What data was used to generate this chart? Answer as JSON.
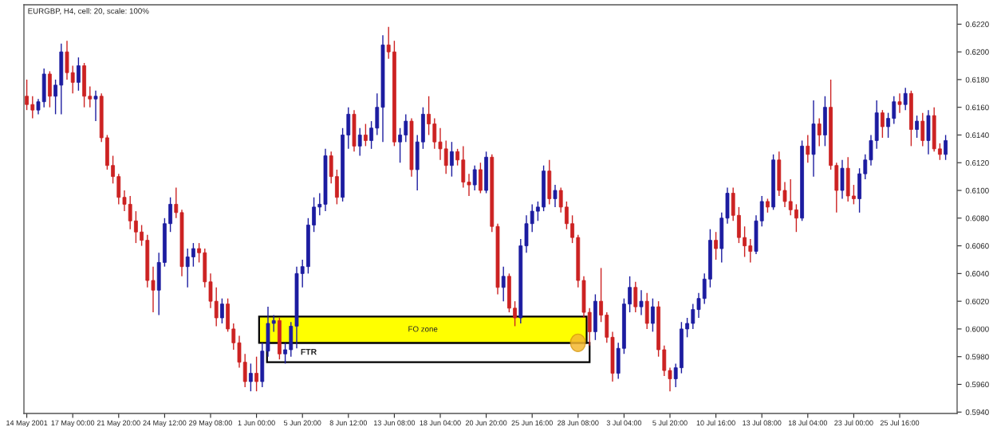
{
  "chart_data": {
    "type": "candlestick",
    "title": "EURGBP, H4, cell: 20, scale: 100%",
    "categories": [
      "14 May 2001",
      null,
      null,
      null,
      null,
      null,
      null,
      null,
      "17 May 00:00",
      null,
      null,
      null,
      null,
      null,
      null,
      null,
      "21 May 20:00",
      null,
      null,
      null,
      null,
      null,
      null,
      null,
      "24 May 12:00",
      null,
      null,
      null,
      null,
      null,
      null,
      null,
      "29 May 08:00",
      null,
      null,
      null,
      null,
      null,
      null,
      null,
      "1 Jun 00:00",
      null,
      null,
      null,
      null,
      null,
      null,
      null,
      "5 Jun 20:00",
      null,
      null,
      null,
      null,
      null,
      null,
      null,
      "8 Jun 12:00",
      null,
      null,
      null,
      null,
      null,
      null,
      null,
      "13 Jun 08:00",
      null,
      null,
      null,
      null,
      null,
      null,
      null,
      "18 Jun 04:00",
      null,
      null,
      null,
      null,
      null,
      null,
      null,
      "20 Jun 20:00",
      null,
      null,
      null,
      null,
      null,
      null,
      null,
      "25 Jun 16:00",
      null,
      null,
      null,
      null,
      null,
      null,
      null,
      "28 Jun 08:00",
      null,
      null,
      null,
      null,
      null,
      null,
      null,
      "3 Jul 04:00",
      null,
      null,
      null,
      null,
      null,
      null,
      null,
      "5 Jul 20:00",
      null,
      null,
      null,
      null,
      null,
      null,
      null,
      "10 Jul 16:00",
      null,
      null,
      null,
      null,
      null,
      null,
      null,
      "13 Jul 08:00",
      null,
      null,
      null,
      null,
      null,
      null,
      null,
      "18 Jul 04:00",
      null,
      null,
      null,
      null,
      null,
      null,
      null,
      "23 Jul 00:00",
      null,
      null,
      null,
      null,
      null,
      null,
      null,
      "25 Jul 16:00",
      null,
      null,
      null,
      null,
      null,
      null,
      null,
      null
    ],
    "ohlc": [
      [
        0.6168,
        0.618,
        0.6158,
        0.6162
      ],
      [
        0.6162,
        0.6168,
        0.6152,
        0.6158
      ],
      [
        0.6158,
        0.6166,
        0.6155,
        0.6164
      ],
      [
        0.6164,
        0.6188,
        0.616,
        0.6184
      ],
      [
        0.6184,
        0.6186,
        0.616,
        0.6168
      ],
      [
        0.6168,
        0.618,
        0.6155,
        0.6176
      ],
      [
        0.6176,
        0.6206,
        0.6155,
        0.62
      ],
      [
        0.62,
        0.6208,
        0.618,
        0.6185
      ],
      [
        0.6185,
        0.619,
        0.617,
        0.6178
      ],
      [
        0.6178,
        0.6196,
        0.6172,
        0.619
      ],
      [
        0.619,
        0.6192,
        0.616,
        0.6168
      ],
      [
        0.6168,
        0.6175,
        0.616,
        0.6166
      ],
      [
        0.6166,
        0.6172,
        0.615,
        0.6168
      ],
      [
        0.6168,
        0.617,
        0.6135,
        0.6138
      ],
      [
        0.6138,
        0.614,
        0.6115,
        0.6118
      ],
      [
        0.6118,
        0.6125,
        0.6105,
        0.611
      ],
      [
        0.611,
        0.6112,
        0.609,
        0.6095
      ],
      [
        0.6095,
        0.61,
        0.6085,
        0.609
      ],
      [
        0.609,
        0.6096,
        0.6072,
        0.6078
      ],
      [
        0.6078,
        0.6085,
        0.6062,
        0.607
      ],
      [
        0.607,
        0.6075,
        0.606,
        0.6064
      ],
      [
        0.6064,
        0.6068,
        0.603,
        0.6035
      ],
      [
        0.6035,
        0.6045,
        0.6012,
        0.6028
      ],
      [
        0.6028,
        0.6055,
        0.601,
        0.6048
      ],
      [
        0.6048,
        0.608,
        0.6045,
        0.6076
      ],
      [
        0.6076,
        0.6095,
        0.607,
        0.609
      ],
      [
        0.609,
        0.6102,
        0.608,
        0.6084
      ],
      [
        0.6084,
        0.6086,
        0.6038,
        0.6045
      ],
      [
        0.6045,
        0.6058,
        0.603,
        0.6052
      ],
      [
        0.6052,
        0.6062,
        0.6045,
        0.6058
      ],
      [
        0.6058,
        0.6062,
        0.6048,
        0.6055
      ],
      [
        0.6055,
        0.6058,
        0.603,
        0.6034
      ],
      [
        0.6034,
        0.604,
        0.6015,
        0.602
      ],
      [
        0.602,
        0.603,
        0.6002,
        0.6008
      ],
      [
        0.6008,
        0.6022,
        0.6004,
        0.6018
      ],
      [
        0.6018,
        0.6022,
        0.5998,
        0.6
      ],
      [
        0.6,
        0.6004,
        0.5985,
        0.599
      ],
      [
        0.599,
        0.5995,
        0.5972,
        0.5976
      ],
      [
        0.5976,
        0.5982,
        0.5958,
        0.5962
      ],
      [
        0.5962,
        0.5975,
        0.5955,
        0.5968
      ],
      [
        0.5968,
        0.598,
        0.5955,
        0.5962
      ],
      [
        0.5962,
        0.599,
        0.5958,
        0.5984
      ],
      [
        0.5984,
        0.6016,
        0.598,
        0.6004
      ],
      [
        0.6004,
        0.601,
        0.5998,
        0.6006
      ],
      [
        0.6006,
        0.6008,
        0.5978,
        0.5982
      ],
      [
        0.5982,
        0.599,
        0.5975,
        0.5985
      ],
      [
        0.5985,
        0.6005,
        0.598,
        0.6002
      ],
      [
        0.6002,
        0.6045,
        0.5986,
        0.604
      ],
      [
        0.604,
        0.605,
        0.603,
        0.6045
      ],
      [
        0.6045,
        0.608,
        0.604,
        0.6075
      ],
      [
        0.6075,
        0.6095,
        0.607,
        0.6088
      ],
      [
        0.6088,
        0.6098,
        0.6082,
        0.609
      ],
      [
        0.609,
        0.613,
        0.6085,
        0.6125
      ],
      [
        0.6125,
        0.6128,
        0.6105,
        0.611
      ],
      [
        0.611,
        0.6115,
        0.609,
        0.6095
      ],
      [
        0.6095,
        0.6145,
        0.6092,
        0.614
      ],
      [
        0.614,
        0.616,
        0.613,
        0.6155
      ],
      [
        0.6155,
        0.6158,
        0.6128,
        0.6132
      ],
      [
        0.6132,
        0.6145,
        0.6125,
        0.614
      ],
      [
        0.614,
        0.6148,
        0.6132,
        0.6136
      ],
      [
        0.6136,
        0.615,
        0.613,
        0.6145
      ],
      [
        0.6145,
        0.617,
        0.614,
        0.616
      ],
      [
        0.616,
        0.6212,
        0.6135,
        0.6205
      ],
      [
        0.6205,
        0.6218,
        0.6195,
        0.62
      ],
      [
        0.62,
        0.6208,
        0.6132,
        0.6135
      ],
      [
        0.6135,
        0.6145,
        0.612,
        0.614
      ],
      [
        0.614,
        0.6155,
        0.6135,
        0.615
      ],
      [
        0.615,
        0.6152,
        0.611,
        0.6115
      ],
      [
        0.6115,
        0.614,
        0.61,
        0.6135
      ],
      [
        0.6135,
        0.616,
        0.613,
        0.6155
      ],
      [
        0.6155,
        0.6168,
        0.614,
        0.6148
      ],
      [
        0.6148,
        0.6152,
        0.613,
        0.6135
      ],
      [
        0.6135,
        0.6145,
        0.6122,
        0.613
      ],
      [
        0.613,
        0.6136,
        0.6112,
        0.6118
      ],
      [
        0.6118,
        0.6135,
        0.611,
        0.6128
      ],
      [
        0.6128,
        0.613,
        0.6118,
        0.6122
      ],
      [
        0.6122,
        0.6132,
        0.6102,
        0.6106
      ],
      [
        0.6106,
        0.6112,
        0.6096,
        0.6104
      ],
      [
        0.6104,
        0.6118,
        0.61,
        0.6115
      ],
      [
        0.6115,
        0.612,
        0.6098,
        0.61
      ],
      [
        0.61,
        0.6128,
        0.6098,
        0.6124
      ],
      [
        0.6124,
        0.6126,
        0.607,
        0.6074
      ],
      [
        0.6074,
        0.6076,
        0.6025,
        0.603
      ],
      [
        0.603,
        0.6045,
        0.602,
        0.6038
      ],
      [
        0.6038,
        0.604,
        0.6012,
        0.6015
      ],
      [
        0.6015,
        0.602,
        0.6002,
        0.6008
      ],
      [
        0.6008,
        0.6065,
        0.6004,
        0.606
      ],
      [
        0.606,
        0.6082,
        0.6055,
        0.6076
      ],
      [
        0.6076,
        0.609,
        0.607,
        0.6085
      ],
      [
        0.6085,
        0.6092,
        0.6078,
        0.6088
      ],
      [
        0.6088,
        0.6118,
        0.6085,
        0.6114
      ],
      [
        0.6114,
        0.6122,
        0.609,
        0.6094
      ],
      [
        0.6094,
        0.6104,
        0.6088,
        0.61
      ],
      [
        0.61,
        0.6102,
        0.6084,
        0.6088
      ],
      [
        0.6088,
        0.6092,
        0.6072,
        0.6076
      ],
      [
        0.6076,
        0.6082,
        0.6062,
        0.6066
      ],
      [
        0.6066,
        0.6068,
        0.603,
        0.6035
      ],
      [
        0.6035,
        0.6038,
        0.6008,
        0.6012
      ],
      [
        0.6012,
        0.6015,
        0.5988,
        0.5998
      ],
      [
        0.5998,
        0.6025,
        0.5992,
        0.602
      ],
      [
        0.602,
        0.6044,
        0.6005,
        0.601
      ],
      [
        0.601,
        0.6012,
        0.599,
        0.5994
      ],
      [
        0.5994,
        0.5998,
        0.5962,
        0.5968
      ],
      [
        0.5968,
        0.599,
        0.5964,
        0.5986
      ],
      [
        0.5986,
        0.6022,
        0.5982,
        0.6018
      ],
      [
        0.6018,
        0.6038,
        0.6012,
        0.603
      ],
      [
        0.603,
        0.6034,
        0.6012,
        0.6016
      ],
      [
        0.6016,
        0.6028,
        0.601,
        0.602
      ],
      [
        0.602,
        0.6026,
        0.6,
        0.6004
      ],
      [
        0.6004,
        0.6022,
        0.5998,
        0.6016
      ],
      [
        0.6016,
        0.602,
        0.598,
        0.5985
      ],
      [
        0.5985,
        0.5988,
        0.5966,
        0.597
      ],
      [
        0.597,
        0.5972,
        0.5955,
        0.5964
      ],
      [
        0.5964,
        0.5975,
        0.5958,
        0.5972
      ],
      [
        0.5972,
        0.6005,
        0.5968,
        0.6
      ],
      [
        0.6,
        0.6008,
        0.5994,
        0.6004
      ],
      [
        0.6004,
        0.6018,
        0.6,
        0.6014
      ],
      [
        0.6014,
        0.6026,
        0.6008,
        0.6022
      ],
      [
        0.6022,
        0.604,
        0.6018,
        0.6036
      ],
      [
        0.6036,
        0.6072,
        0.603,
        0.6064
      ],
      [
        0.6064,
        0.607,
        0.605,
        0.6058
      ],
      [
        0.6058,
        0.6084,
        0.6048,
        0.608
      ],
      [
        0.608,
        0.6102,
        0.6076,
        0.6098
      ],
      [
        0.6098,
        0.6102,
        0.6078,
        0.6082
      ],
      [
        0.6082,
        0.6088,
        0.6062,
        0.6066
      ],
      [
        0.6066,
        0.6074,
        0.6052,
        0.606
      ],
      [
        0.606,
        0.6065,
        0.6048,
        0.6056
      ],
      [
        0.6056,
        0.6082,
        0.6054,
        0.6078
      ],
      [
        0.6078,
        0.6096,
        0.6074,
        0.6092
      ],
      [
        0.6092,
        0.6094,
        0.6084,
        0.6088
      ],
      [
        0.6088,
        0.6126,
        0.6086,
        0.6122
      ],
      [
        0.6122,
        0.6128,
        0.6096,
        0.61
      ],
      [
        0.61,
        0.6106,
        0.6088,
        0.6092
      ],
      [
        0.6092,
        0.6108,
        0.6082,
        0.6086
      ],
      [
        0.6086,
        0.609,
        0.607,
        0.608
      ],
      [
        0.608,
        0.6136,
        0.6078,
        0.6132
      ],
      [
        0.6132,
        0.614,
        0.612,
        0.6126
      ],
      [
        0.6126,
        0.6165,
        0.611,
        0.6148
      ],
      [
        0.6148,
        0.6152,
        0.6132,
        0.614
      ],
      [
        0.614,
        0.6168,
        0.6132,
        0.616
      ],
      [
        0.616,
        0.618,
        0.6115,
        0.6118
      ],
      [
        0.6118,
        0.612,
        0.6084,
        0.61
      ],
      [
        0.61,
        0.6122,
        0.6094,
        0.6116
      ],
      [
        0.6116,
        0.6124,
        0.6092,
        0.6096
      ],
      [
        0.6096,
        0.6104,
        0.609,
        0.6094
      ],
      [
        0.6094,
        0.6116,
        0.6084,
        0.6112
      ],
      [
        0.6112,
        0.6126,
        0.6108,
        0.6122
      ],
      [
        0.6122,
        0.614,
        0.6118,
        0.6136
      ],
      [
        0.6136,
        0.6165,
        0.613,
        0.6156
      ],
      [
        0.6156,
        0.6158,
        0.6138,
        0.6146
      ],
      [
        0.6146,
        0.6156,
        0.6138,
        0.6152
      ],
      [
        0.6152,
        0.6168,
        0.6148,
        0.6164
      ],
      [
        0.6164,
        0.617,
        0.6156,
        0.6162
      ],
      [
        0.6162,
        0.6174,
        0.6158,
        0.617
      ],
      [
        0.617,
        0.6172,
        0.6132,
        0.6144
      ],
      [
        0.6144,
        0.6154,
        0.6138,
        0.615
      ],
      [
        0.615,
        0.6156,
        0.6132,
        0.6136
      ],
      [
        0.6136,
        0.6158,
        0.6126,
        0.6154
      ],
      [
        0.6154,
        0.616,
        0.6128,
        0.613
      ],
      [
        0.613,
        0.6134,
        0.6122,
        0.6126
      ],
      [
        0.6126,
        0.614,
        0.6122,
        0.6136
      ]
    ],
    "colors": [
      "#cc2222",
      "#cc2222",
      "#1c1ca0",
      "#1c1ca0",
      "#cc2222",
      "#1c1ca0",
      "#1c1ca0",
      "#cc2222",
      "#cc2222",
      "#1c1ca0",
      "#cc2222",
      "#cc2222",
      "#1c1ca0",
      "#cc2222",
      "#cc2222",
      "#cc2222",
      "#cc2222",
      "#cc2222",
      "#cc2222",
      "#cc2222",
      "#cc2222",
      "#cc2222",
      "#cc2222",
      "#1c1ca0",
      "#1c1ca0",
      "#1c1ca0",
      "#cc2222",
      "#cc2222",
      "#1c1ca0",
      "#1c1ca0",
      "#cc2222",
      "#cc2222",
      "#cc2222",
      "#cc2222",
      "#1c1ca0",
      "#cc2222",
      "#cc2222",
      "#cc2222",
      "#cc2222",
      "#1c1ca0",
      "#cc2222",
      "#1c1ca0",
      "#1c1ca0",
      "#1c1ca0",
      "#cc2222",
      "#1c1ca0",
      "#1c1ca0",
      "#1c1ca0",
      "#1c1ca0",
      "#1c1ca0",
      "#1c1ca0",
      "#1c1ca0",
      "#1c1ca0",
      "#cc2222",
      "#cc2222",
      "#1c1ca0",
      "#1c1ca0",
      "#cc2222",
      "#1c1ca0",
      "#cc2222",
      "#1c1ca0",
      "#1c1ca0",
      "#1c1ca0",
      "#cc2222",
      "#cc2222",
      "#1c1ca0",
      "#1c1ca0",
      "#cc2222",
      "#1c1ca0",
      "#1c1ca0",
      "#cc2222",
      "#cc2222",
      "#cc2222",
      "#cc2222",
      "#1c1ca0",
      "#cc2222",
      "#cc2222",
      "#cc2222",
      "#1c1ca0",
      "#cc2222",
      "#1c1ca0",
      "#cc2222",
      "#cc2222",
      "#1c1ca0",
      "#cc2222",
      "#cc2222",
      "#1c1ca0",
      "#1c1ca0",
      "#1c1ca0",
      "#1c1ca0",
      "#1c1ca0",
      "#cc2222",
      "#1c1ca0",
      "#cc2222",
      "#cc2222",
      "#cc2222",
      "#cc2222",
      "#cc2222",
      "#cc2222",
      "#1c1ca0",
      "#cc2222",
      "#cc2222",
      "#cc2222",
      "#1c1ca0",
      "#1c1ca0",
      "#1c1ca0",
      "#cc2222",
      "#1c1ca0",
      "#cc2222",
      "#1c1ca0",
      "#cc2222",
      "#cc2222",
      "#cc2222",
      "#1c1ca0",
      "#1c1ca0",
      "#1c1ca0",
      "#1c1ca0",
      "#1c1ca0",
      "#1c1ca0",
      "#1c1ca0",
      "#cc2222",
      "#1c1ca0",
      "#1c1ca0",
      "#cc2222",
      "#cc2222",
      "#cc2222",
      "#cc2222",
      "#1c1ca0",
      "#1c1ca0",
      "#cc2222",
      "#1c1ca0",
      "#cc2222",
      "#cc2222",
      "#cc2222",
      "#cc2222",
      "#1c1ca0",
      "#cc2222",
      "#1c1ca0",
      "#cc2222",
      "#1c1ca0",
      "#cc2222",
      "#cc2222",
      "#1c1ca0",
      "#cc2222",
      "#cc2222",
      "#1c1ca0",
      "#1c1ca0",
      "#1c1ca0",
      "#1c1ca0",
      "#cc2222",
      "#1c1ca0",
      "#1c1ca0",
      "#cc2222",
      "#1c1ca0",
      "#cc2222",
      "#1c1ca0",
      "#cc2222",
      "#1c1ca0",
      "#cc2222",
      "#cc2222",
      "#1c1ca0"
    ],
    "ylim": [
      0.5939,
      0.6234
    ],
    "yticks": [
      {
        "value": 0.594,
        "label": "0.5940"
      },
      {
        "value": 0.596,
        "label": "0.5960"
      },
      {
        "value": 0.598,
        "label": "0.5980"
      },
      {
        "value": 0.6,
        "label": "0.6000"
      },
      {
        "value": 0.602,
        "label": "0.6020"
      },
      {
        "value": 0.604,
        "label": "0.6040"
      },
      {
        "value": 0.606,
        "label": "0.6060"
      },
      {
        "value": 0.608,
        "label": "0.6080"
      },
      {
        "value": 0.61,
        "label": "0.6100"
      },
      {
        "value": 0.612,
        "label": "0.6120"
      },
      {
        "value": 0.614,
        "label": "0.6140"
      },
      {
        "value": 0.616,
        "label": "0.6160"
      },
      {
        "value": 0.618,
        "label": "0.6180"
      },
      {
        "value": 0.62,
        "label": "0.6200"
      },
      {
        "value": 0.622,
        "label": "0.6220"
      }
    ],
    "bands": [
      {
        "axis": "y",
        "from": 0.599,
        "to": 0.6009,
        "label": "FO zone",
        "color": "#ffff00"
      },
      {
        "axis": "y",
        "from": 0.5976,
        "to": 0.599,
        "label": "FTR",
        "color": "#ffffff"
      }
    ],
    "grid": false,
    "legend": false
  }
}
